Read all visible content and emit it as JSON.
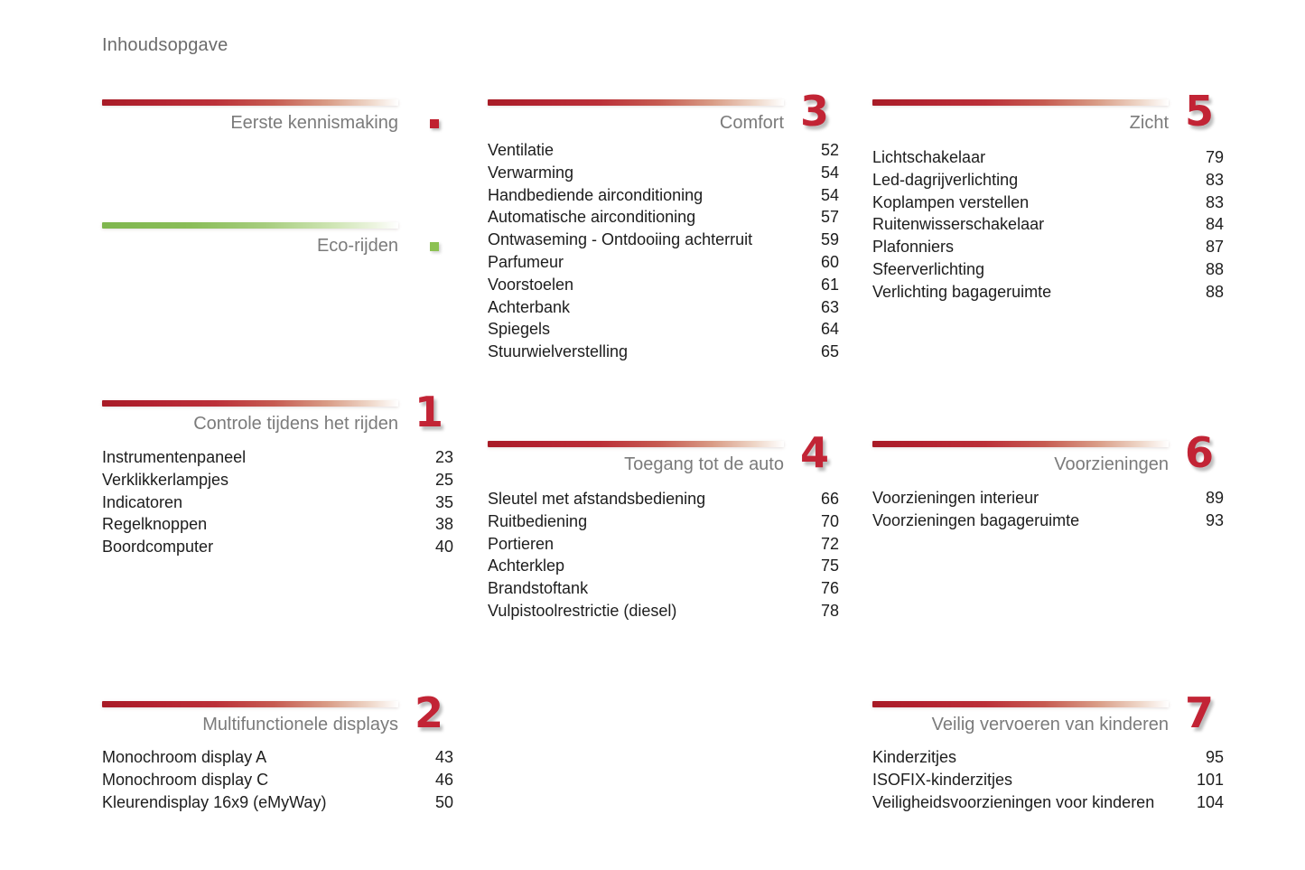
{
  "page": {
    "title": "Inhoudsopgave"
  },
  "colors": {
    "accent_red": "#b32330",
    "accent_green": "#85b955",
    "numeral_red": "#c22435",
    "marker_red": "#c0202f",
    "marker_green": "#8cc152",
    "title_gray": "#7b7b7b",
    "text_dark": "#1d1d1d"
  },
  "sections": [
    {
      "id": "eerste-kennismaking",
      "title": "Eerste kennismaking",
      "number": "",
      "bar": "red",
      "marker": "red",
      "items": []
    },
    {
      "id": "eco-rijden",
      "title": "Eco-rijden",
      "number": "",
      "bar": "green",
      "marker": "green",
      "items": []
    },
    {
      "id": "controle-tijdens-het-rijden",
      "title": "Controle tijdens het rijden",
      "number": "1",
      "bar": "red",
      "items": [
        {
          "label": "Instrumentenpaneel",
          "page": "23"
        },
        {
          "label": "Verklikkerlampjes",
          "page": "25"
        },
        {
          "label": "Indicatoren",
          "page": "35"
        },
        {
          "label": "Regelknoppen",
          "page": "38"
        },
        {
          "label": "Boordcomputer",
          "page": "40"
        }
      ]
    },
    {
      "id": "multifunctionele-displays",
      "title": "Multifunctionele displays",
      "number": "2",
      "bar": "red",
      "items": [
        {
          "label": "Monochroom display A",
          "page": "43"
        },
        {
          "label": "Monochroom display C",
          "page": "46"
        },
        {
          "label": "Kleurendisplay 16x9 (eMyWay)",
          "page": "50"
        }
      ]
    },
    {
      "id": "comfort",
      "title": "Comfort",
      "number": "3",
      "bar": "red",
      "items": [
        {
          "label": "Ventilatie",
          "page": "52"
        },
        {
          "label": "Verwarming",
          "page": "54"
        },
        {
          "label": "Handbediende airconditioning",
          "page": "54"
        },
        {
          "label": "Automatische airconditioning",
          "page": "57"
        },
        {
          "label": "Ontwaseming - Ontdooiing achterruit",
          "page": "59"
        },
        {
          "label": "Parfumeur",
          "page": "60"
        },
        {
          "label": "Voorstoelen",
          "page": "61"
        },
        {
          "label": "Achterbank",
          "page": "63"
        },
        {
          "label": "Spiegels",
          "page": "64"
        },
        {
          "label": "Stuurwielverstelling",
          "page": "65"
        }
      ]
    },
    {
      "id": "toegang-tot-de-auto",
      "title": "Toegang tot de auto",
      "number": "4",
      "bar": "red",
      "items": [
        {
          "label": "Sleutel met afstandsbediening",
          "page": "66"
        },
        {
          "label": "Ruitbediening",
          "page": "70"
        },
        {
          "label": "Portieren",
          "page": "72"
        },
        {
          "label": "Achterklep",
          "page": "75"
        },
        {
          "label": "Brandstoftank",
          "page": "76"
        },
        {
          "label": "Vulpistoolrestrictie (diesel)",
          "page": "78"
        }
      ]
    },
    {
      "id": "zicht",
      "title": "Zicht",
      "number": "5",
      "bar": "red",
      "items": [
        {
          "label": "Lichtschakelaar",
          "page": "79"
        },
        {
          "label": "Led-dagrijverlichting",
          "page": "83"
        },
        {
          "label": "Koplampen verstellen",
          "page": "83"
        },
        {
          "label": "Ruitenwisserschakelaar",
          "page": "84"
        },
        {
          "label": "Plafonniers",
          "page": "87"
        },
        {
          "label": "Sfeerverlichting",
          "page": "88"
        },
        {
          "label": "Verlichting bagageruimte",
          "page": "88"
        }
      ]
    },
    {
      "id": "voorzieningen",
      "title": "Voorzieningen",
      "number": "6",
      "bar": "red",
      "items": [
        {
          "label": "Voorzieningen interieur",
          "page": "89"
        },
        {
          "label": "Voorzieningen bagageruimte",
          "page": "93"
        }
      ]
    },
    {
      "id": "veilig-vervoeren-van-kinderen",
      "title": "Veilig vervoeren van kinderen",
      "number": "7",
      "bar": "red",
      "items": [
        {
          "label": "Kinderzitjes",
          "page": "95"
        },
        {
          "label": "ISOFIX-kinderzitjes",
          "page": "101"
        },
        {
          "label": "Veiligheidsvoorzieningen voor kinderen",
          "page": "104"
        }
      ]
    }
  ]
}
